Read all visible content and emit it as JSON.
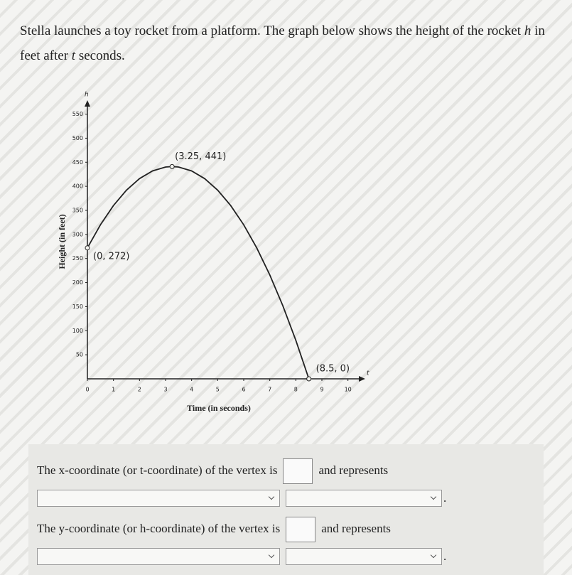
{
  "question": [
    "Stella launches a toy rocket from a platform. The graph below shows the height of the rocket ",
    "h",
    " in feet after ",
    "t",
    " seconds."
  ],
  "chart_data": {
    "type": "line",
    "x_label": "Time (in seconds)",
    "y_label": "Height (in feet)",
    "x_axis_letter": "t",
    "y_axis_letter": "h",
    "xlim": [
      0,
      10.5
    ],
    "ylim": [
      0,
      570
    ],
    "xticks": [
      0,
      1,
      2,
      3,
      4,
      5,
      6,
      7,
      8,
      9,
      10
    ],
    "yticks": [
      50,
      100,
      150,
      200,
      250,
      300,
      350,
      400,
      450,
      500,
      550
    ],
    "color": "#222222",
    "x": [
      0,
      0.5,
      1,
      1.5,
      2,
      2.5,
      3,
      3.25,
      3.5,
      4,
      4.5,
      5,
      5.5,
      6,
      6.5,
      7,
      7.5,
      8,
      8.5
    ],
    "values": [
      272,
      320,
      360,
      392,
      416,
      432,
      440,
      441,
      440,
      432,
      416,
      392,
      360,
      320,
      272,
      216,
      152,
      80,
      0
    ],
    "points": [
      {
        "x": 0,
        "y": 272,
        "label": "(0, 272)"
      },
      {
        "x": 3.25,
        "y": 441,
        "label": "(3.25, 441)"
      },
      {
        "x": 8.5,
        "y": 0,
        "label": "(8.5, 0)"
      }
    ]
  },
  "form": [
    {
      "lead": "The x-coordinate (or t-coordinate) of the vertex is",
      "tail": "and represents",
      "end": "."
    },
    {
      "lead": "The y-coordinate (or h-coordinate) of the vertex is",
      "tail": "and represents",
      "end": "."
    }
  ]
}
